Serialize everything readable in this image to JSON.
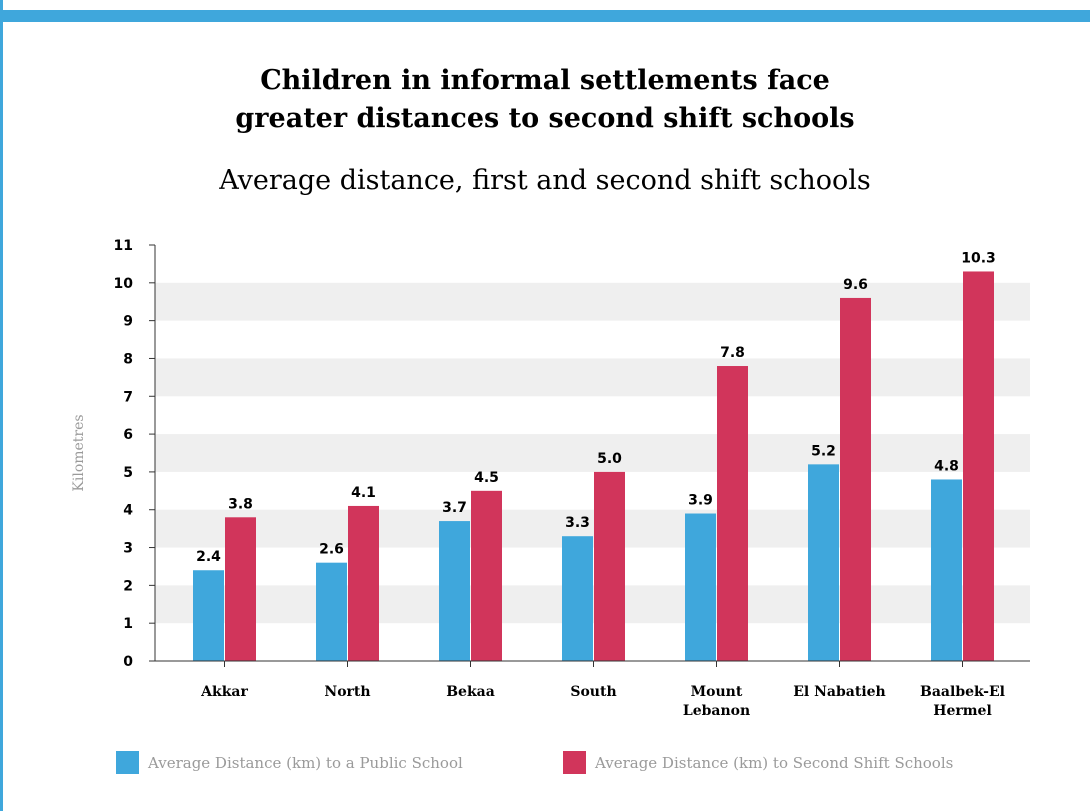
{
  "title": "Children in informal settlements face greater distances to second shift schools",
  "subtitle": "Average distance, first and second shift schools",
  "colors": {
    "accent": "#3fa7dc",
    "public": "#3fa7dc",
    "second_shift": "#d1355b",
    "band": "#efefef"
  },
  "chart_data": {
    "type": "bar",
    "title": "Children in informal settlements face greater distances to second shift schools",
    "subtitle": "Average distance, first and second shift schools",
    "ylabel": "Kilometres",
    "xlabel": "",
    "ylim": [
      0,
      11
    ],
    "yticks": [
      0,
      1,
      2,
      3,
      4,
      5,
      6,
      7,
      8,
      9,
      10,
      11
    ],
    "grid": "alternating horizontal bands",
    "legend_position": "bottom",
    "categories": [
      [
        "Akkar"
      ],
      [
        "North"
      ],
      [
        "Bekaa"
      ],
      [
        "South"
      ],
      [
        "Mount",
        "Lebanon"
      ],
      [
        "El Nabatieh"
      ],
      [
        "Baalbek-El",
        "Hermel"
      ]
    ],
    "series": [
      {
        "name": "Average Distance (km) to a Public School",
        "color": "#3fa7dc",
        "values": [
          2.4,
          2.6,
          3.7,
          3.3,
          3.9,
          5.2,
          4.8
        ],
        "labels": [
          "2.4",
          "2.6",
          "3.7",
          "3.3",
          "3.9",
          "5.2",
          "4.8"
        ]
      },
      {
        "name": "Average Distance (km) to Second Shift Schools",
        "color": "#d1355b",
        "values": [
          3.8,
          4.1,
          4.5,
          5.0,
          7.8,
          9.6,
          10.3
        ],
        "labels": [
          "3.8",
          "4.1",
          "4.5",
          "5.0",
          "7.8",
          "9.6",
          "10.3"
        ]
      }
    ]
  }
}
